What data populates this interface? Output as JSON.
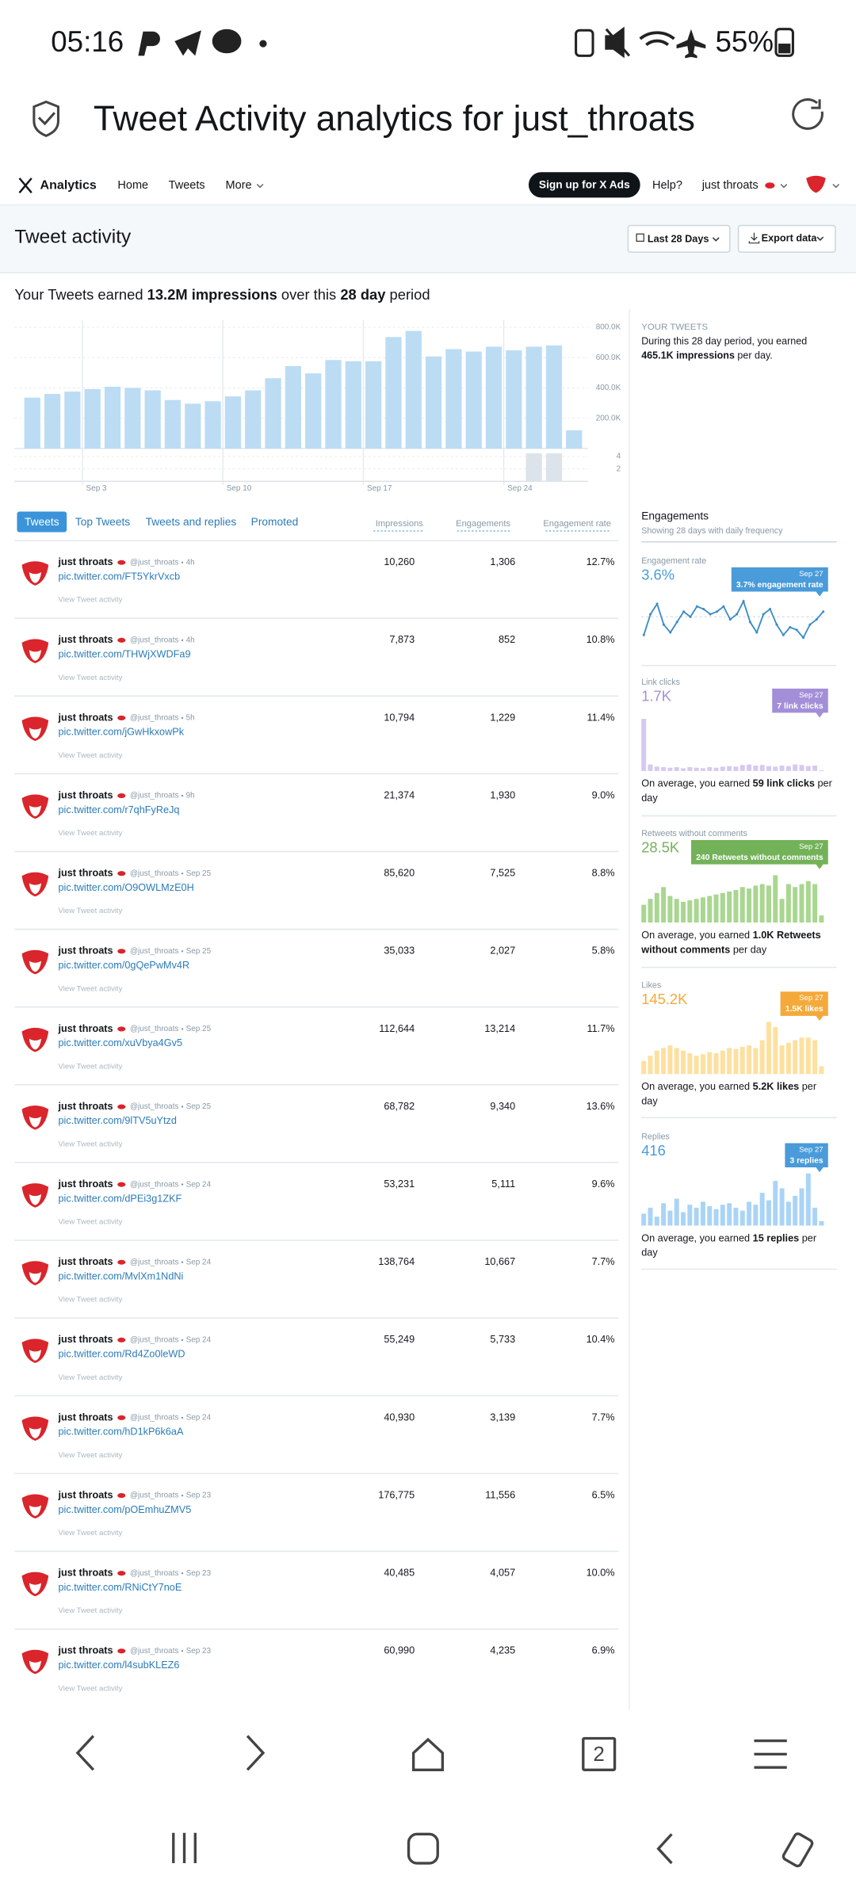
{
  "status_bar": {
    "time": "05:16",
    "battery": "55%"
  },
  "browser": {
    "title": "Tweet Activity analytics for just_throats",
    "tab_count": "2"
  },
  "nav": {
    "brand": "Analytics",
    "links": [
      "Home",
      "Tweets",
      "More"
    ],
    "cta": "Sign up for X Ads",
    "help": "Help?",
    "account": "just throats"
  },
  "header": {
    "title": "Tweet activity",
    "range": "Last 28 Days",
    "export": "Export data"
  },
  "summary": {
    "parts": [
      "Your Tweets earned ",
      "13.2M impressions",
      " over this ",
      "28 day",
      " period"
    ]
  },
  "your_tweets": {
    "label": "YOUR TWEETS",
    "parts": [
      "During this 28 day period, you earned",
      "465.1K impressions",
      " per day."
    ]
  },
  "tabs": [
    "Tweets",
    "Top Tweets",
    "Tweets and replies",
    "Promoted"
  ],
  "columns": [
    "Impressions",
    "Engagements",
    "Engagement rate"
  ],
  "tweets": {
    "rows": [
      {
        "name": "just throats",
        "handle": "@just_throats",
        "time": "4h",
        "link": "pic.twitter.com/FT5YkrVxcb",
        "action": "View Tweet activity",
        "impressions": "10,260",
        "engagements": "1,306",
        "rate": "12.7%"
      },
      {
        "name": "just throats",
        "handle": "@just_throats",
        "time": "4h",
        "link": "pic.twitter.com/THWjXWDFa9",
        "action": "View Tweet activity",
        "impressions": "7,873",
        "engagements": "852",
        "rate": "10.8%"
      },
      {
        "name": "just throats",
        "handle": "@just_throats",
        "time": "5h",
        "link": "pic.twitter.com/jGwHkxowPk",
        "action": "View Tweet activity",
        "impressions": "10,794",
        "engagements": "1,229",
        "rate": "11.4%"
      },
      {
        "name": "just throats",
        "handle": "@just_throats",
        "time": "9h",
        "link": "pic.twitter.com/r7qhFyReJq",
        "action": "View Tweet activity",
        "impressions": "21,374",
        "engagements": "1,930",
        "rate": "9.0%"
      },
      {
        "name": "just throats",
        "handle": "@just_throats",
        "time": "Sep 25",
        "link": "pic.twitter.com/O9OWLMzE0H",
        "action": "View Tweet activity",
        "impressions": "85,620",
        "engagements": "7,525",
        "rate": "8.8%"
      },
      {
        "name": "just throats",
        "handle": "@just_throats",
        "time": "Sep 25",
        "link": "pic.twitter.com/0gQePwMv4R",
        "action": "View Tweet activity",
        "impressions": "35,033",
        "engagements": "2,027",
        "rate": "5.8%"
      },
      {
        "name": "just throats",
        "handle": "@just_throats",
        "time": "Sep 25",
        "link": "pic.twitter.com/xuVbya4Gv5",
        "action": "View Tweet activity",
        "impressions": "112,644",
        "engagements": "13,214",
        "rate": "11.7%"
      },
      {
        "name": "just throats",
        "handle": "@just_throats",
        "time": "Sep 25",
        "link": "pic.twitter.com/9lTV5uYtzd",
        "action": "View Tweet activity",
        "impressions": "68,782",
        "engagements": "9,340",
        "rate": "13.6%"
      },
      {
        "name": "just throats",
        "handle": "@just_throats",
        "time": "Sep 24",
        "link": "pic.twitter.com/dPEi3g1ZKF",
        "action": "View Tweet activity",
        "impressions": "53,231",
        "engagements": "5,111",
        "rate": "9.6%"
      },
      {
        "name": "just throats",
        "handle": "@just_throats",
        "time": "Sep 24",
        "link": "pic.twitter.com/MvlXm1NdNi",
        "action": "View Tweet activity",
        "impressions": "138,764",
        "engagements": "10,667",
        "rate": "7.7%"
      },
      {
        "name": "just throats",
        "handle": "@just_throats",
        "time": "Sep 24",
        "link": "pic.twitter.com/Rd4Zo0leWD",
        "action": "View Tweet activity",
        "impressions": "55,249",
        "engagements": "5,733",
        "rate": "10.4%"
      },
      {
        "name": "just throats",
        "handle": "@just_throats",
        "time": "Sep 24",
        "link": "pic.twitter.com/hD1kP6k6aA",
        "action": "View Tweet activity",
        "impressions": "40,930",
        "engagements": "3,139",
        "rate": "7.7%"
      },
      {
        "name": "just throats",
        "handle": "@just_throats",
        "time": "Sep 23",
        "link": "pic.twitter.com/pOEmhuZMV5",
        "action": "View Tweet activity",
        "impressions": "176,775",
        "engagements": "11,556",
        "rate": "6.5%"
      },
      {
        "name": "just throats",
        "handle": "@just_throats",
        "time": "Sep 23",
        "link": "pic.twitter.com/RNiCtY7noE",
        "action": "View Tweet activity",
        "impressions": "40,485",
        "engagements": "4,057",
        "rate": "10.0%"
      },
      {
        "name": "just throats",
        "handle": "@just_throats",
        "time": "Sep 23",
        "link": "pic.twitter.com/l4subKLEZ6",
        "action": "View Tweet activity",
        "impressions": "60,990",
        "engagements": "4,235",
        "rate": "6.9%"
      }
    ]
  },
  "engagements": {
    "title": "Engagements",
    "subtitle": "Showing 28 days with daily frequency",
    "cards": [
      {
        "label": "Engagement rate",
        "total": "3.6%",
        "accent": "#4a9bd9",
        "tooltip_date": "Sep 27",
        "tooltip": "3.7% engagement rate"
      },
      {
        "label": "Link clicks",
        "total": "1.7K",
        "accent": "#a38fd8",
        "tooltip_date": "Sep 27",
        "tooltip": "7 link clicks",
        "avg": [
          "On average, you earned ",
          "59 link clicks",
          " per day"
        ]
      },
      {
        "label": "Retweets without comments",
        "total": "28.5K",
        "accent": "#74b25a",
        "tooltip_date": "Sep 27",
        "tooltip": "240 Retweets without comments",
        "avg": [
          "On average, you earned ",
          "1.0K Retweets without comments",
          " per day"
        ]
      },
      {
        "label": "Likes",
        "total": "145.2K",
        "accent": "#f5a93a",
        "tooltip_date": "Sep 27",
        "tooltip": "1.5K likes",
        "avg": [
          "On average, you earned ",
          "5.2K likes",
          " per day"
        ]
      },
      {
        "label": "Replies",
        "total": "416",
        "accent": "#4a9bd9",
        "tooltip_date": "Sep 27",
        "tooltip": "3 replies",
        "avg": [
          "On average, you earned ",
          "15 replies",
          " per day"
        ]
      }
    ]
  },
  "chart_data": [
    {
      "type": "bar",
      "categories": [
        null,
        null,
        null,
        "Sep 3",
        null,
        null,
        null,
        null,
        null,
        null,
        "Sep 10",
        null,
        null,
        null,
        null,
        null,
        null,
        "Sep 17",
        null,
        null,
        null,
        null,
        null,
        null,
        "Sep 24",
        null,
        null,
        null
      ],
      "series": [
        {
          "color": "#bcdcf4",
          "values": [
            336000,
            360000,
            376000,
            392000,
            408000,
            400000,
            384000,
            320000,
            296000,
            312000,
            344000,
            384000,
            464000,
            544000,
            496000,
            584000,
            576000,
            576000,
            736000,
            776000,
            608000,
            656000,
            640000,
            672000,
            648000,
            672000,
            680000,
            120000
          ]
        },
        {
          "color": "#dde3ea",
          "axis": "y2",
          "values": [
            0,
            0,
            0,
            0,
            0,
            0,
            0,
            0,
            0,
            0,
            0,
            0,
            0,
            0,
            0,
            0,
            0,
            0,
            0,
            0,
            0,
            0,
            0,
            0,
            0,
            4.5,
            4.5,
            0
          ]
        }
      ],
      "ylim": [
        0,
        800000
      ],
      "yticks": [
        {
          "value": 200000,
          "label": "200.0K"
        },
        {
          "value": 400000,
          "label": "400.0K"
        },
        {
          "value": 600000,
          "label": "600.0K"
        },
        {
          "value": 800000,
          "label": "800.0K"
        }
      ],
      "y2lim": [
        0,
        4.7
      ],
      "y2ticks": [
        2,
        4
      ],
      "grid": true
    },
    {
      "type": "line",
      "color": "#3b8cc4",
      "values": [
        2.8,
        3.6,
        4.0,
        3.2,
        2.9,
        3.3,
        3.7,
        3.5,
        3.9,
        3.8,
        3.6,
        3.7,
        3.9,
        3.4,
        3.6,
        4.1,
        3.3,
        2.9,
        3.6,
        3.8,
        3.2,
        2.8,
        3.1,
        3.0,
        2.7,
        3.2,
        3.4,
        3.7
      ]
    },
    {
      "type": "bar",
      "color": "#d6c9ef",
      "values": [
        480,
        60,
        40,
        35,
        30,
        35,
        25,
        35,
        30,
        25,
        35,
        30,
        40,
        45,
        40,
        55,
        60,
        50,
        55,
        45,
        40,
        50,
        45,
        60,
        55,
        45,
        50,
        7
      ]
    },
    {
      "type": "bar",
      "color": "#a9d690",
      "values": [
        600,
        800,
        1000,
        1200,
        900,
        800,
        700,
        750,
        800,
        850,
        900,
        950,
        1000,
        1050,
        1100,
        1200,
        1150,
        1250,
        1300,
        1250,
        1600,
        800,
        1300,
        1200,
        1300,
        1400,
        1300,
        240
      ]
    },
    {
      "type": "bar",
      "color": "#fde0a0",
      "values": [
        2500,
        3500,
        4500,
        5000,
        5500,
        5000,
        4500,
        4000,
        3500,
        3800,
        4200,
        4000,
        4500,
        5000,
        4800,
        5200,
        5500,
        5000,
        6500,
        10000,
        9000,
        5500,
        6000,
        6500,
        7000,
        7000,
        6500,
        1500
      ]
    },
    {
      "type": "bar",
      "color": "#aad4f5",
      "values": [
        8,
        12,
        6,
        15,
        10,
        18,
        9,
        14,
        12,
        16,
        13,
        11,
        14,
        15,
        12,
        10,
        16,
        14,
        22,
        17,
        30,
        25,
        16,
        20,
        25,
        35,
        12,
        3
      ]
    }
  ]
}
